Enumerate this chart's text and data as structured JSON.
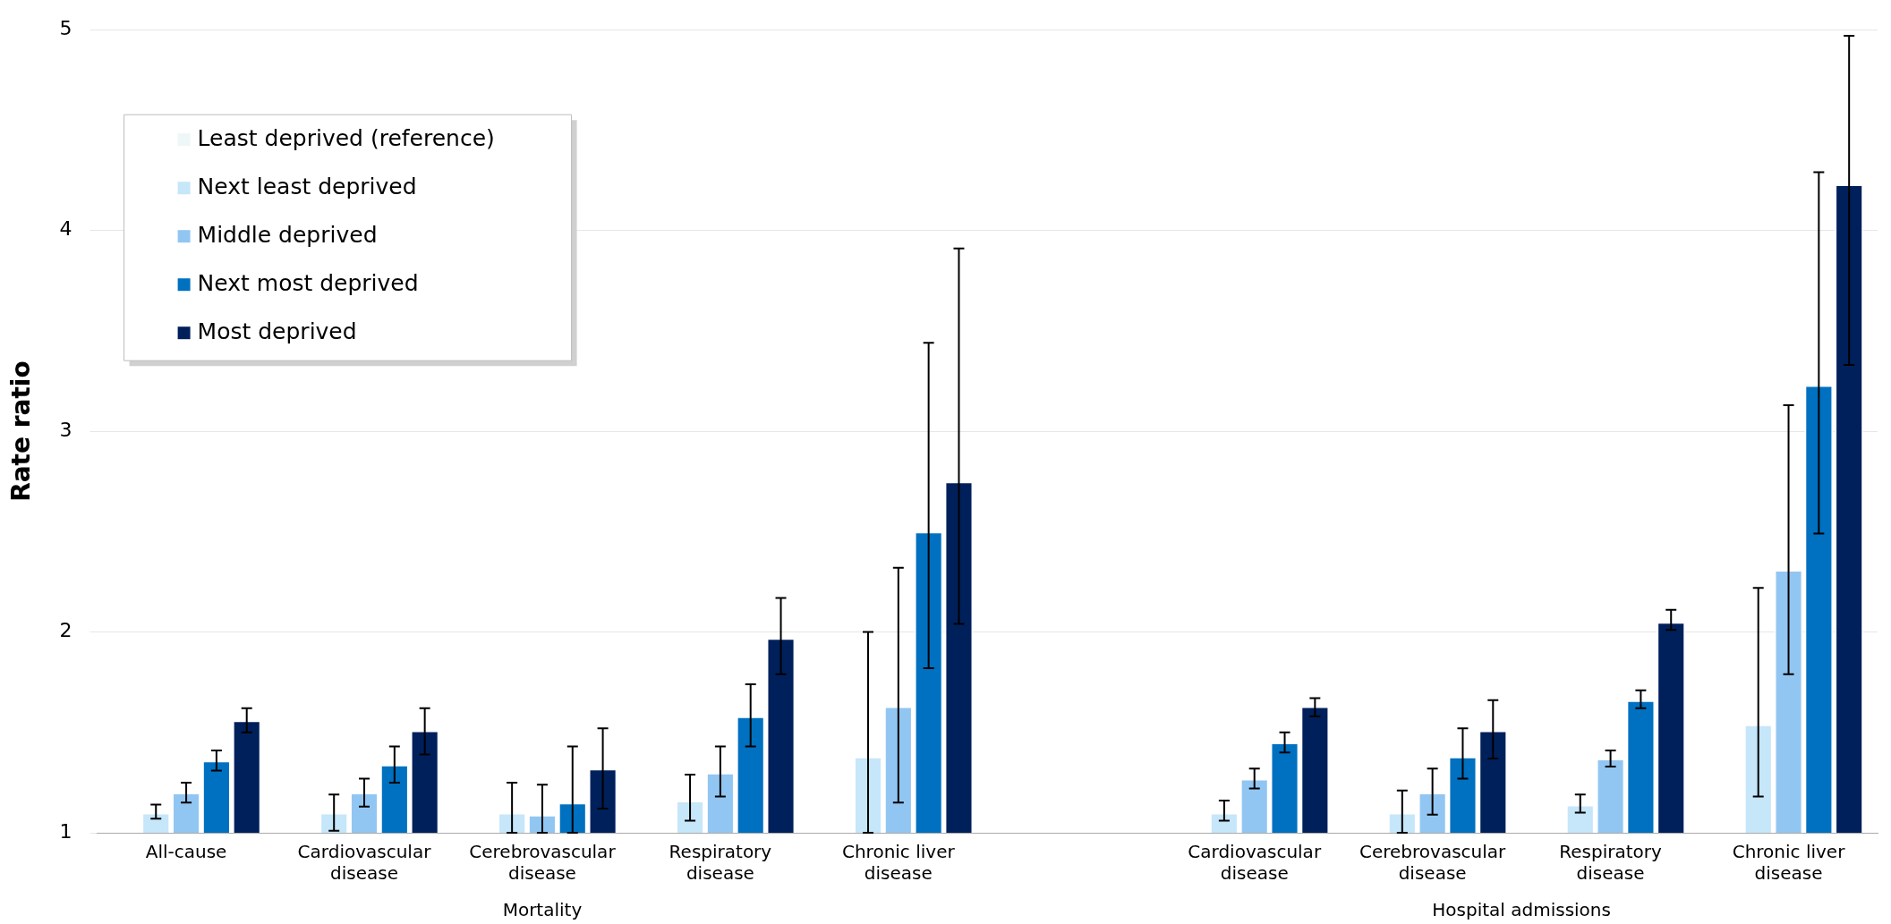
{
  "chart_data": {
    "type": "bar",
    "ylabel": "Rate ratio",
    "categories": [
      "All-cause",
      "Cardiovascular disease",
      "Cerebrovascular disease",
      "Respiratory disease",
      "Chronic liver disease",
      null,
      "Cardiovascular disease",
      "Cerebrovascular disease",
      "Respiratory disease",
      "Chronic liver disease"
    ],
    "series": [
      {
        "name": "Least deprived (reference)",
        "color": "#eef7f7",
        "values": [
          1,
          1,
          1,
          1,
          1,
          null,
          1,
          1,
          1,
          1
        ]
      },
      {
        "name": "Next least deprived",
        "color": "#c6e6fa",
        "values": [
          1.1,
          1.1,
          1.1,
          1.16,
          1.38,
          null,
          1.1,
          1.1,
          1.14,
          1.54
        ],
        "errors": [
          [
            1.07,
            1.14
          ],
          [
            1.01,
            1.19
          ],
          [
            1.0,
            1.25
          ],
          [
            1.06,
            1.29
          ],
          [
            1.0,
            2.0
          ],
          null,
          [
            1.06,
            1.16
          ],
          [
            1.0,
            1.21
          ],
          [
            1.1,
            1.19
          ],
          [
            1.18,
            2.22
          ]
        ]
      },
      {
        "name": "Middle deprived",
        "color": "#92c6f2",
        "values": [
          1.2,
          1.2,
          1.09,
          1.3,
          1.63,
          null,
          1.27,
          1.2,
          1.37,
          2.31
        ],
        "errors": [
          [
            1.15,
            1.25
          ],
          [
            1.13,
            1.27
          ],
          [
            1.0,
            1.24
          ],
          [
            1.18,
            1.43
          ],
          [
            1.15,
            2.32
          ],
          null,
          [
            1.22,
            1.32
          ],
          [
            1.09,
            1.32
          ],
          [
            1.33,
            1.41
          ],
          [
            1.79,
            3.13
          ]
        ]
      },
      {
        "name": "Next most deprived",
        "color": "#0070c0",
        "values": [
          1.36,
          1.34,
          1.15,
          1.58,
          2.5,
          null,
          1.45,
          1.38,
          1.66,
          3.23
        ],
        "errors": [
          [
            1.31,
            1.41
          ],
          [
            1.25,
            1.43
          ],
          [
            1.0,
            1.43
          ],
          [
            1.43,
            1.74
          ],
          [
            1.82,
            3.44
          ],
          null,
          [
            1.4,
            1.5
          ],
          [
            1.27,
            1.52
          ],
          [
            1.62,
            1.71
          ],
          [
            2.49,
            4.29
          ]
        ]
      },
      {
        "name": "Most deprived",
        "color": "#00205b",
        "values": [
          1.56,
          1.51,
          1.32,
          1.97,
          2.75,
          null,
          1.63,
          1.51,
          2.05,
          4.23
        ],
        "errors": [
          [
            1.5,
            1.62
          ],
          [
            1.39,
            1.62
          ],
          [
            1.12,
            1.52
          ],
          [
            1.79,
            2.17
          ],
          [
            2.04,
            3.91
          ],
          null,
          [
            1.58,
            1.67
          ],
          [
            1.37,
            1.66
          ],
          [
            2.01,
            2.11
          ],
          [
            3.33,
            4.97
          ]
        ]
      }
    ],
    "ylim": [
      1,
      5
    ],
    "yticks": [
      1,
      2,
      3,
      4,
      5
    ],
    "grid": "y",
    "legend": "top left",
    "annotations": [
      "Mortality",
      "Hospital admissions"
    ]
  }
}
